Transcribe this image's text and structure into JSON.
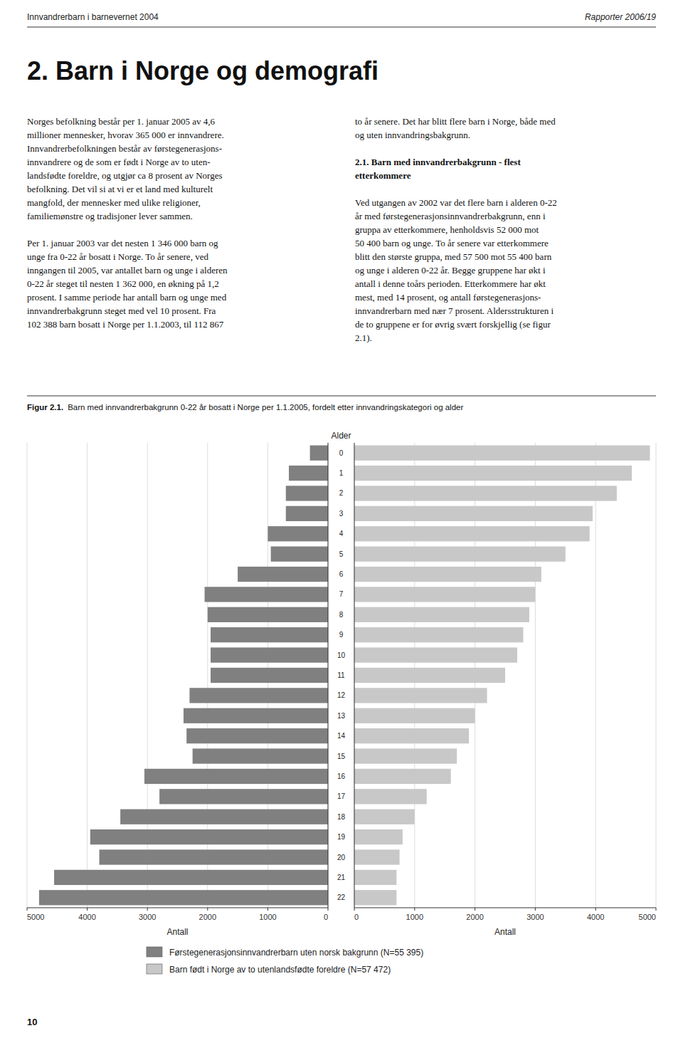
{
  "page_text": {
    "header_left": "Innvandrerbarn i barnevernet 2004",
    "header_right": "Rapporter 2006/19",
    "section_title": "2.  Barn i Norge og demografi",
    "body_left": [
      [
        "Norges befolkning består per 1. januar 2005 av 4,6",
        "millioner mennesker, hvorav 365 000 er innvandrere.",
        "Innvandrerbefolkningen består av førstegenerasjons-",
        "innvandrere og de som er født i Norge av to uten-",
        "landsfødte foreldre, og utgjør ca 8 prosent av Norges",
        "befolkning. Det vil si at vi er et land med kulturelt",
        "mangfold, der mennesker med ulike religioner,",
        "familiemønstre og tradisjoner lever sammen."
      ],
      [
        "Per 1. januar 2003 var det nesten 1 346 000 barn og",
        "unge fra 0-22 år bosatt i Norge. To år senere, ved",
        "inngangen til 2005, var antallet barn og unge i alderen",
        "0-22 år steget til nesten 1 362 000, en økning på 1,2",
        "prosent. I samme periode har antall barn og unge med",
        "innvandrerbakgrunn steget med vel 10 prosent. Fra",
        "102 388 barn bosatt i Norge per 1.1.2003, til 112 867"
      ]
    ],
    "body_right_before": [
      "to år senere. Det har blitt flere barn i Norge, både med",
      "og uten innvandringsbakgrunn."
    ],
    "subheading": [
      "2.1.  Barn med innvandrerbakgrunn - flest",
      "etterkommere"
    ],
    "body_right_after": [
      "Ved utgangen av 2002 var det flere barn i alderen 0-22",
      "år med førstegenerasjonsinnvandrerbakgrunn, enn i",
      "gruppa av etterkommere, henholdsvis 52 000 mot",
      "50 400 barn og unge. To år senere var etterkommere",
      "blitt den største gruppa, med 57 500 mot 55 400 barn",
      "og unge i alderen 0-22 år. Begge gruppene har økt i",
      "antall i denne toårs perioden. Etterkommere har økt",
      "mest, med 14 prosent, og antall førstegenerasjons-",
      "innvandrerbarn med nær 7 prosent. Aldersstrukturen i",
      "de to gruppene er for øvrig svært forskjellig (se figur",
      "2.1)."
    ],
    "page_number": "10"
  },
  "chart_data": {
    "type": "bar",
    "orientation": "horizontal",
    "title": "Figur 2.1.",
    "subtitle": "Barn med innvandrerbakgrunn 0-22 år bosatt i Norge per 1.1.2005, fordelt etter innvandringskategori og alder",
    "xlabel": "Antall",
    "ylabel": "Alder",
    "categories": [
      22,
      21,
      20,
      19,
      18,
      17,
      16,
      15,
      14,
      13,
      12,
      11,
      10,
      9,
      8,
      7,
      6,
      5,
      4,
      3,
      2,
      1,
      0
    ],
    "series": [
      {
        "name": "Førstegenerasjonsinnvandrerbarn uten norsk bakgrunn (N=55 395)",
        "color": "#808080",
        "values": [
          4800,
          4550,
          3800,
          3950,
          3450,
          2800,
          3050,
          2250,
          2350,
          2400,
          2300,
          1950,
          1950,
          1950,
          2000,
          2050,
          1500,
          950,
          1000,
          700,
          700,
          650,
          300
        ]
      },
      {
        "name": "Barn født i Norge av to utenlandsfødte foreldre (N=57 472)",
        "color": "#c8c8c8",
        "values": [
          700,
          700,
          750,
          800,
          1000,
          1200,
          1600,
          1700,
          1900,
          2000,
          2200,
          2500,
          2700,
          2800,
          2900,
          3000,
          3100,
          3500,
          3900,
          3950,
          4350,
          4600,
          4900
        ]
      }
    ],
    "xlim": [
      0,
      5000
    ],
    "xticks": [
      0,
      1000,
      2000,
      3000,
      4000,
      5000
    ],
    "grid": true,
    "legend": "bottom"
  }
}
